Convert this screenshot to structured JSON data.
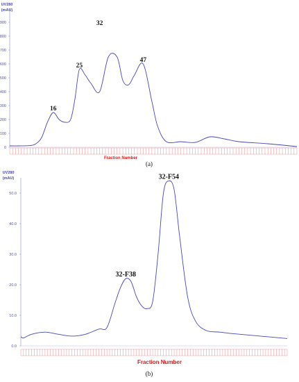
{
  "chart_data": [
    {
      "type": "line",
      "panel_label": "(a)",
      "ylabel": "UV280",
      "yunit": "(mAU)",
      "xlabel": "Fraction Number",
      "ylim": [
        0,
        1000
      ],
      "xlim": [
        1,
        100
      ],
      "yticks": [
        0,
        100,
        200,
        300,
        400,
        500,
        600,
        700,
        800,
        900
      ],
      "ytick_labels": [
        "0",
        "100",
        "200",
        "300",
        "400",
        "500",
        "600",
        "700",
        "800",
        "900"
      ],
      "series": [
        {
          "x": [
            1,
            4,
            8,
            10,
            12,
            14,
            16,
            18,
            20,
            22,
            23.5,
            25,
            27,
            29,
            32,
            35,
            38,
            40,
            42,
            44,
            47,
            50,
            52,
            55,
            60,
            65,
            70,
            75,
            80,
            90,
            100
          ],
          "y": [
            10,
            10,
            12,
            25,
            70,
            180,
            250,
            200,
            180,
            200,
            350,
            560,
            520,
            460,
            400,
            650,
            650,
            480,
            450,
            520,
            600,
            330,
            150,
            40,
            40,
            35,
            75,
            60,
            40,
            25,
            5
          ]
        }
      ],
      "peak_labels": [
        {
          "text": "16",
          "x": 16,
          "y": 250
        },
        {
          "text": "25",
          "x": 25,
          "y": 560
        },
        {
          "text": "32",
          "x": 32,
          "y": 865
        },
        {
          "text": "47",
          "x": 47,
          "y": 600
        }
      ]
    },
    {
      "type": "line",
      "panel_label": "(b)",
      "ylabel": "UV280",
      "yunit": "(mAU)",
      "xlabel": "Fraction Number",
      "ylim": [
        0,
        55
      ],
      "xlim": [
        1,
        100
      ],
      "yticks": [
        0,
        10,
        20,
        30,
        40,
        50
      ],
      "ytick_labels": [
        "0.0",
        "10.0",
        "20.0",
        "30.0",
        "40.0",
        "50.0"
      ],
      "series": [
        {
          "x": [
            1,
            2,
            5,
            10,
            15,
            20,
            25,
            30,
            33,
            36,
            38,
            40,
            42,
            44,
            46,
            48,
            50,
            52,
            54,
            56,
            58,
            60,
            63,
            66,
            70,
            75,
            80,
            90,
            100
          ],
          "y": [
            3,
            2.6,
            3.8,
            4.5,
            3.8,
            3.2,
            3.8,
            5.5,
            6,
            14,
            19,
            22,
            21,
            16,
            13,
            12.2,
            14.5,
            30,
            50,
            54,
            51,
            36,
            16,
            8,
            5,
            4.5,
            4,
            3.2,
            2.4
          ]
        }
      ],
      "peak_labels": [
        {
          "text": "32-F38",
          "x": 40,
          "y": 22
        },
        {
          "text": "32-F54",
          "x": 56,
          "y": 54
        }
      ]
    }
  ]
}
